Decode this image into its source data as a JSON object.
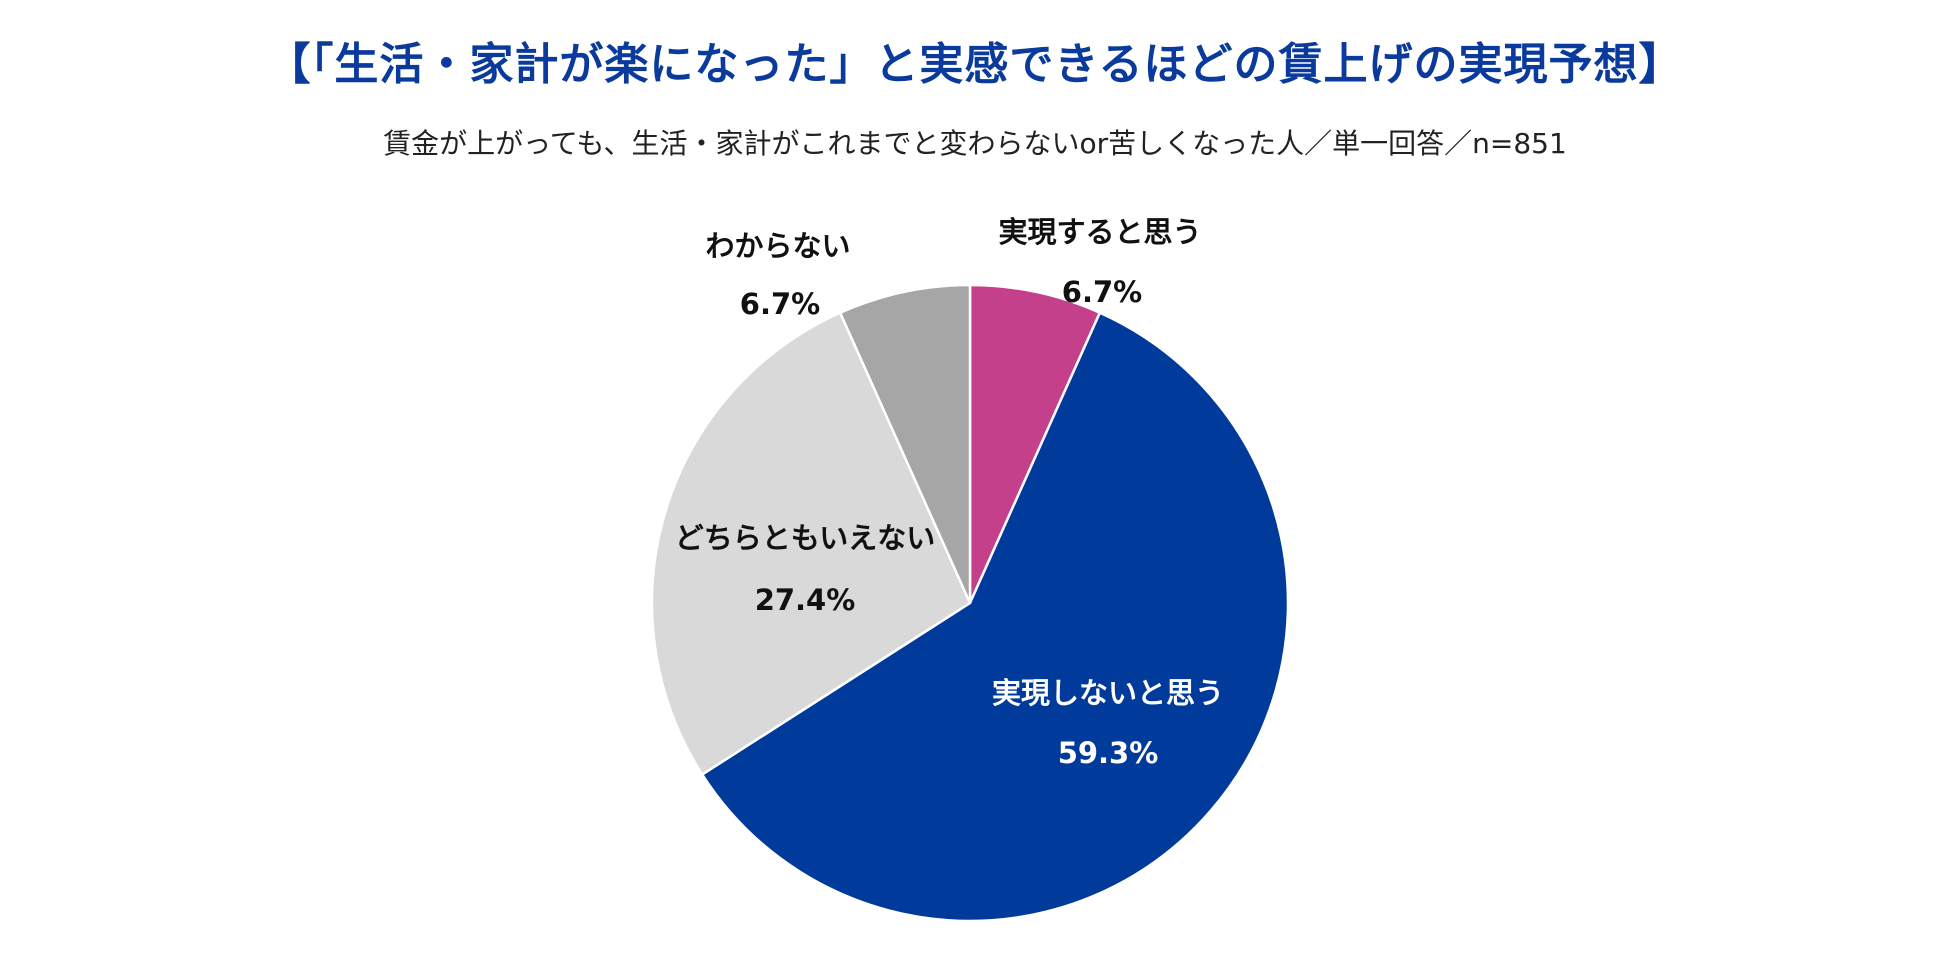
{
  "chart_data": {
    "type": "pie",
    "title": "【「生活・家計が楽になった」と実感できるほどの賃上げの実現予想】",
    "subtitle": "賃金が上がっても、生活・家計がこれまでと変わらないor苦しくなった人／単一回答／n=851",
    "slices": [
      {
        "name": "実現すると思う",
        "value": 6.7,
        "value_label": "6.7%",
        "color": "#c5408a",
        "label_color": "#111111"
      },
      {
        "name": "実現しないと思う",
        "value": 59.3,
        "value_label": "59.3%",
        "color": "#003a9b",
        "label_color": "#ffffff"
      },
      {
        "name": "どちらともいえない",
        "value": 27.4,
        "value_label": "27.4%",
        "color": "#d9d9d9",
        "label_color": "#111111"
      },
      {
        "name": "わからない",
        "value": 6.7,
        "value_label": "6.7%",
        "color": "#a6a6a6",
        "label_color": "#111111"
      }
    ],
    "start_angle_deg": 0,
    "direction": "clockwise",
    "legend": "none"
  }
}
